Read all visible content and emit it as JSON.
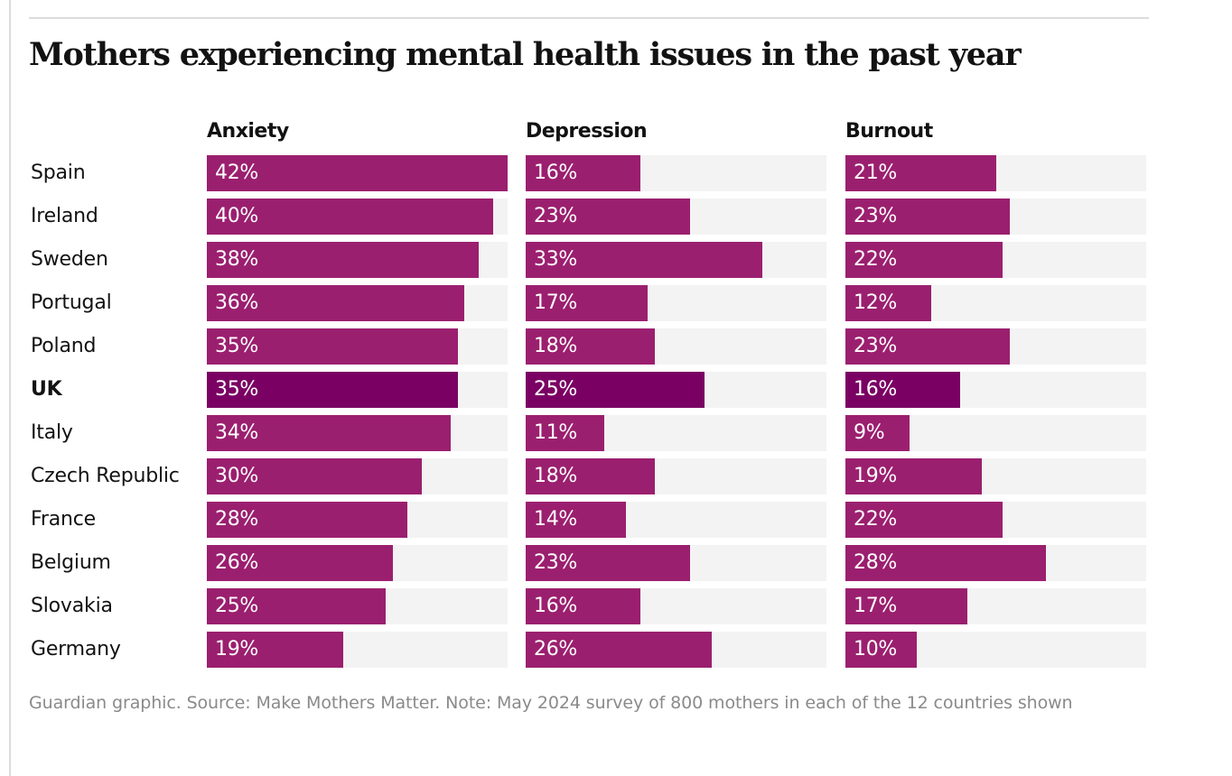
{
  "chart_data": {
    "type": "bar",
    "orientation": "horizontal",
    "title": "Mothers experiencing mental health issues in the past year",
    "categories": [
      "Spain",
      "Ireland",
      "Sweden",
      "Portugal",
      "Poland",
      "UK",
      "Italy",
      "Czech Republic",
      "France",
      "Belgium",
      "Slovakia",
      "Germany"
    ],
    "highlight": "UK",
    "xlim": [
      0,
      42
    ],
    "series": [
      {
        "name": "Anxiety",
        "values": [
          42,
          40,
          38,
          36,
          35,
          35,
          34,
          30,
          28,
          26,
          25,
          19
        ]
      },
      {
        "name": "Depression",
        "values": [
          16,
          23,
          33,
          17,
          18,
          25,
          11,
          18,
          14,
          23,
          16,
          26
        ]
      },
      {
        "name": "Burnout",
        "values": [
          21,
          23,
          22,
          12,
          23,
          16,
          9,
          19,
          22,
          28,
          17,
          10
        ]
      }
    ],
    "unit": "%",
    "colors": {
      "bar": "#9b1f6f",
      "highlight": "#7a0063",
      "track": "#f3f3f3"
    },
    "note": "Guardian graphic. Source: Make Mothers Matter. Note: May 2024 survey of 800 mothers in each of the 12 countries shown"
  }
}
